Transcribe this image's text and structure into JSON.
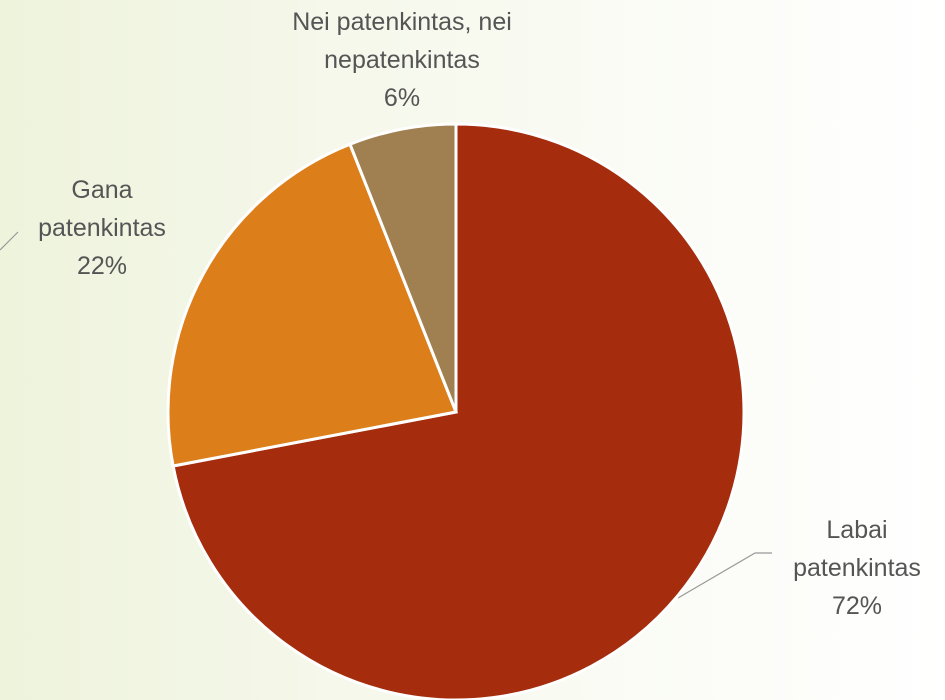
{
  "chart_data": {
    "type": "pie",
    "categories": [
      "Labai patenkintas",
      "Gana patenkintas",
      "Nei patenkintas, nei nepatenkintas"
    ],
    "values": [
      72,
      22,
      6
    ],
    "value_labels": [
      "72%",
      "22%",
      "6%"
    ],
    "colors": [
      "#a52d0e",
      "#dc7e1a",
      "#a08050"
    ]
  }
}
